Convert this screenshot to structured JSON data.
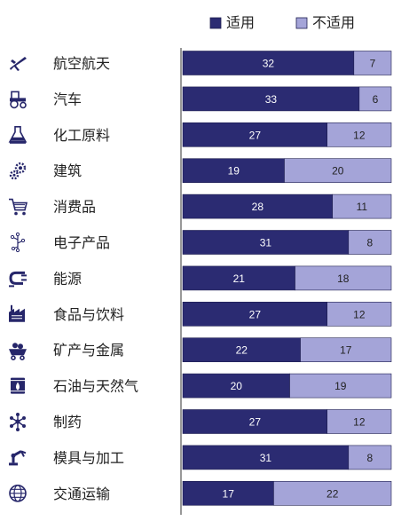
{
  "chart_data": {
    "type": "bar",
    "orientation": "horizontal",
    "stacked": true,
    "categories": [
      "航空航天",
      "汽车",
      "化工原料",
      "建筑",
      "消费品",
      "电子产品",
      "能源",
      "食品与饮料",
      "矿产与金属",
      "石油与天然气",
      "制药",
      "模具与加工",
      "交通运输"
    ],
    "category_icons": [
      "airplane-icon",
      "tractor-icon",
      "flask-icon",
      "gears-icon",
      "shopping-cart-icon",
      "circuit-icon",
      "power-plug-icon",
      "food-factory-icon",
      "mine-cart-icon",
      "oil-drum-icon",
      "molecule-icon",
      "robot-arm-icon",
      "globe-icon"
    ],
    "series": [
      {
        "name": "适用",
        "values": [
          32,
          33,
          27,
          19,
          28,
          31,
          21,
          27,
          22,
          20,
          27,
          31,
          17
        ],
        "color": "#2b2b72"
      },
      {
        "name": "不适用",
        "values": [
          7,
          6,
          12,
          20,
          11,
          8,
          18,
          12,
          17,
          19,
          12,
          8,
          22
        ],
        "color": "#a4a4d8"
      }
    ],
    "legend_position": "top-right",
    "data_labels": true,
    "grid": false
  }
}
